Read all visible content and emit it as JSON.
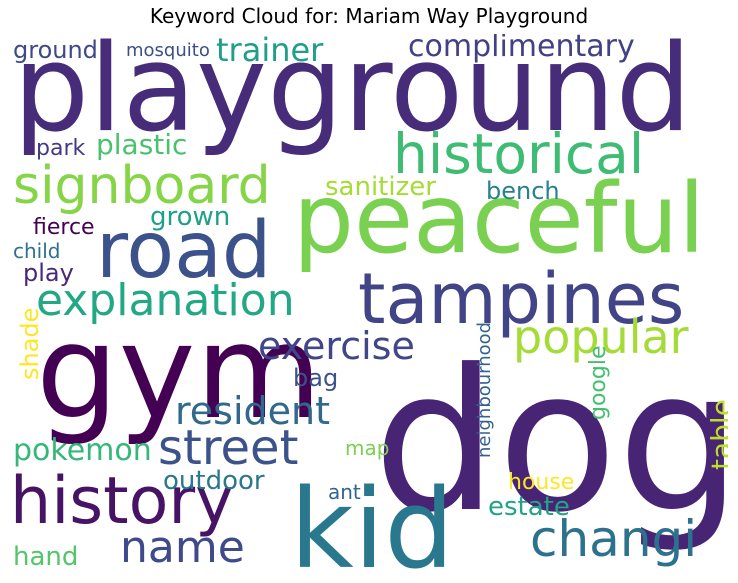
{
  "title": "Keyword Cloud for: Mariam Way Playground",
  "words": [
    {
      "text": "playground",
      "color": "#472c7a"
    },
    {
      "text": "dog",
      "color": "#482475"
    },
    {
      "text": "gym",
      "color": "#440154"
    },
    {
      "text": "peaceful",
      "color": "#7ad151"
    },
    {
      "text": "kid",
      "color": "#2a788e"
    },
    {
      "text": "tampines",
      "color": "#414487"
    },
    {
      "text": "road",
      "color": "#3b528b"
    },
    {
      "text": "historical",
      "color": "#3fbc73"
    },
    {
      "text": "signboard",
      "color": "#86d549"
    },
    {
      "text": "history",
      "color": "#471365"
    },
    {
      "text": "explanation",
      "color": "#22a884"
    },
    {
      "text": "street",
      "color": "#3b528b"
    },
    {
      "text": "changi",
      "color": "#2c718e"
    },
    {
      "text": "popular",
      "color": "#a5db36"
    },
    {
      "text": "name",
      "color": "#3e4a89"
    },
    {
      "text": "resident",
      "color": "#31688e"
    },
    {
      "text": "exercise",
      "color": "#404688"
    },
    {
      "text": "complimentary",
      "color": "#424186"
    },
    {
      "text": "trainer",
      "color": "#1f9e89"
    },
    {
      "text": "pokemon",
      "color": "#35b779"
    },
    {
      "text": "plastic",
      "color": "#4ac16d"
    },
    {
      "text": "outdoor",
      "color": "#2a788e"
    },
    {
      "text": "sanitizer",
      "color": "#a5db36"
    },
    {
      "text": "bench",
      "color": "#26828e"
    },
    {
      "text": "grown",
      "color": "#1fa088"
    },
    {
      "text": "estate",
      "color": "#20a386"
    },
    {
      "text": "ground",
      "color": "#3e4989"
    },
    {
      "text": "mosquito",
      "color": "#3d4e8a"
    },
    {
      "text": "park",
      "color": "#443983"
    },
    {
      "text": "fierce",
      "color": "#440154"
    },
    {
      "text": "child",
      "color": "#2c728e"
    },
    {
      "text": "play",
      "color": "#482979"
    },
    {
      "text": "bag",
      "color": "#3b528b"
    },
    {
      "text": "ant",
      "color": "#32648e"
    },
    {
      "text": "map",
      "color": "#7ad151"
    },
    {
      "text": "house",
      "color": "#fde725"
    },
    {
      "text": "hand",
      "color": "#54c568"
    },
    {
      "text": "shade",
      "color": "#fde725"
    },
    {
      "text": "neighbourhood",
      "color": "#34618d"
    },
    {
      "text": "google",
      "color": "#44bf70"
    },
    {
      "text": "table",
      "color": "#bddf26"
    }
  ]
}
